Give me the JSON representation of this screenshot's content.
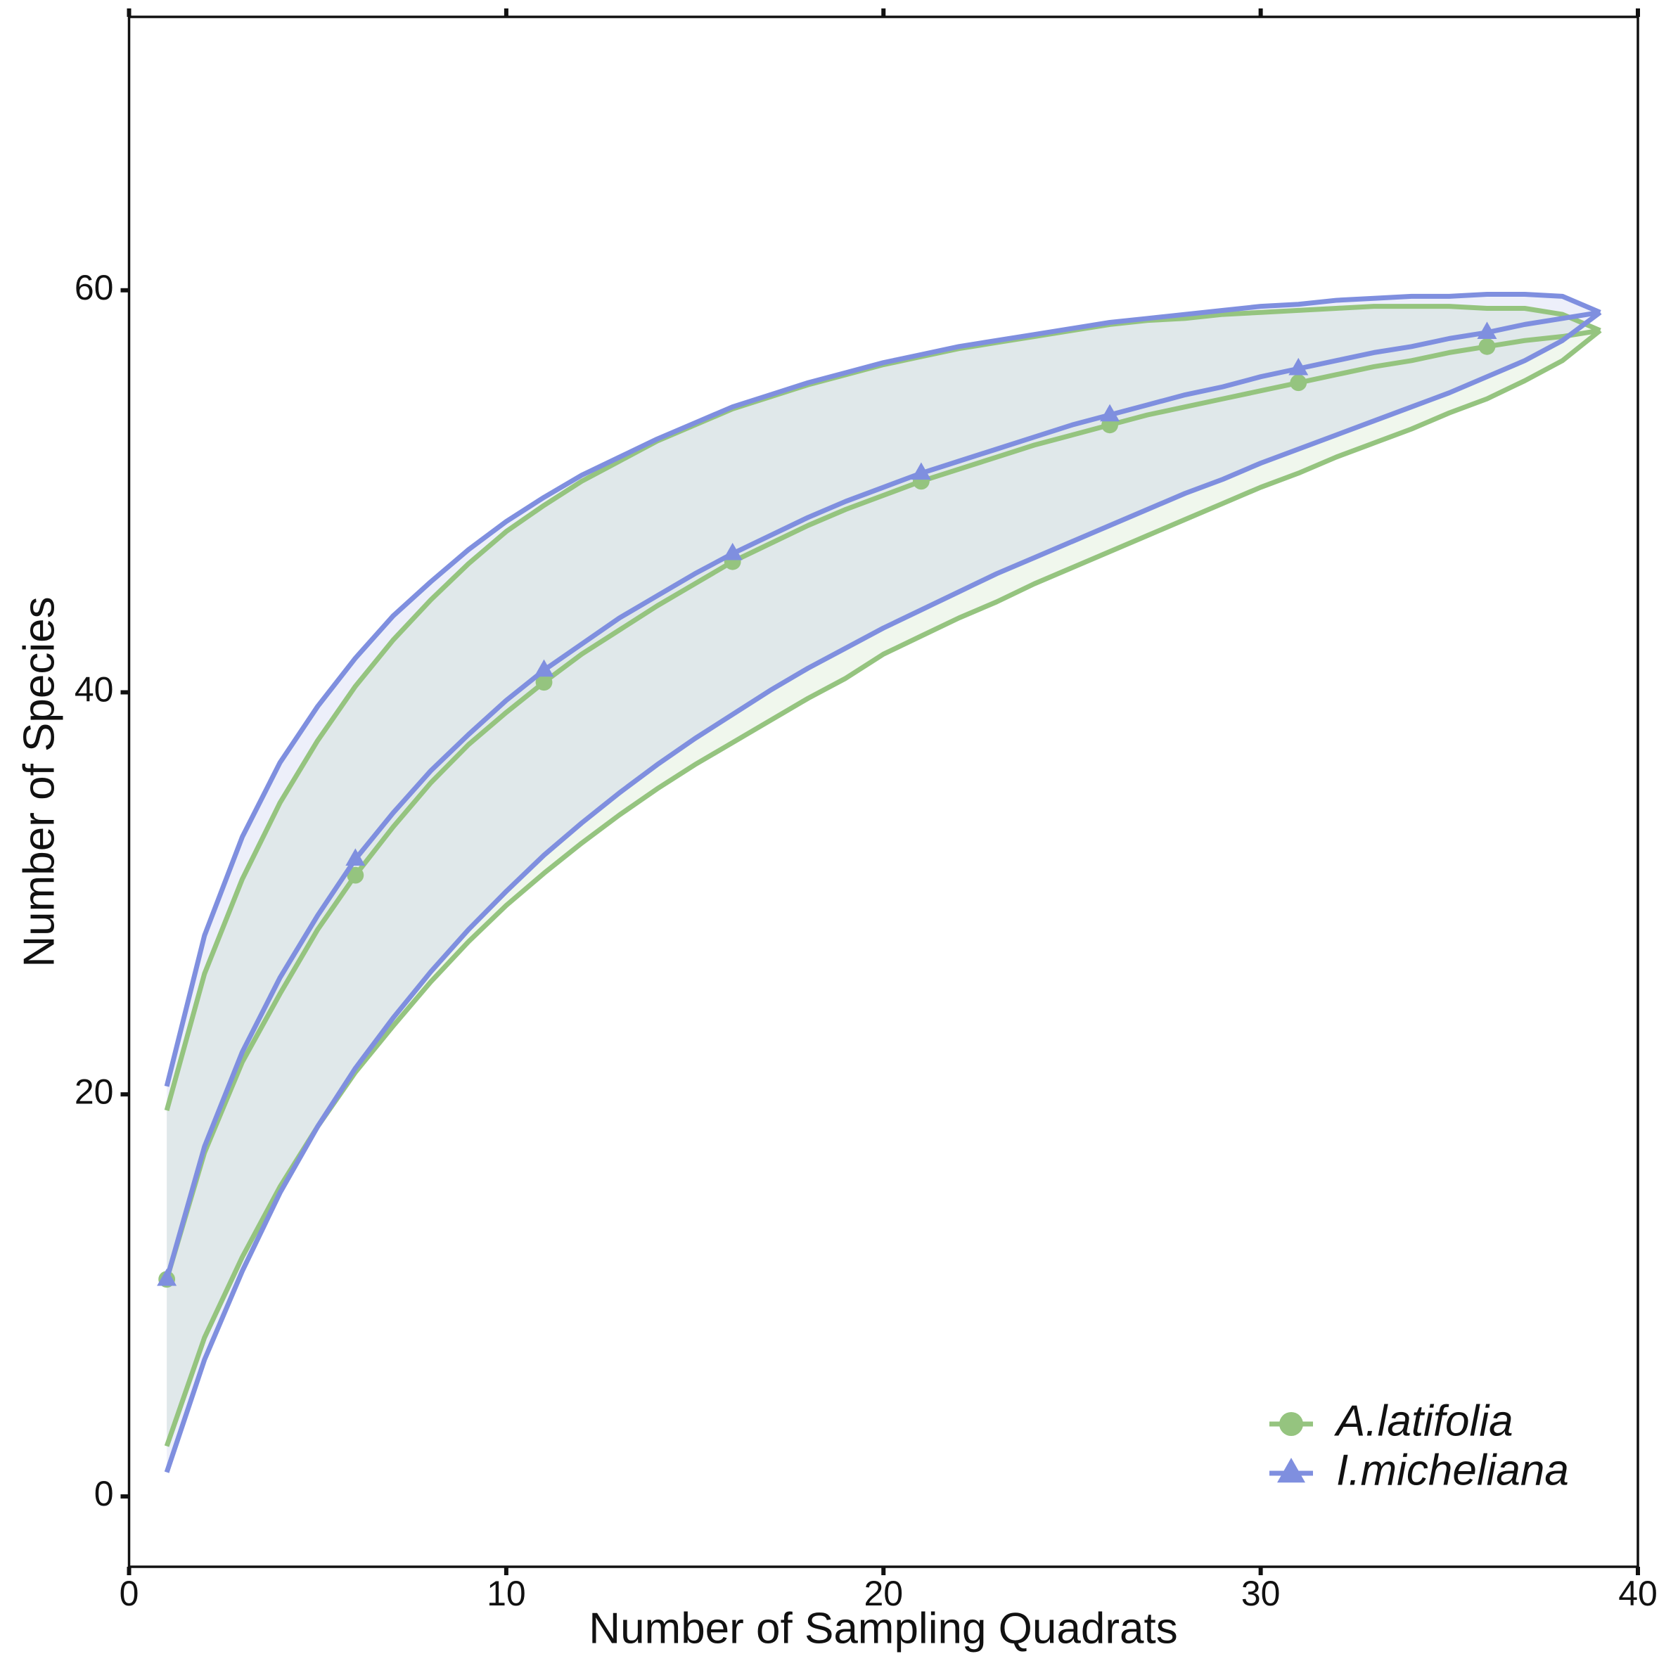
{
  "chart_data": {
    "type": "line",
    "x_label": "Number of Sampling Quadrats",
    "y_label": "Number of Species",
    "x": [
      1,
      2,
      3,
      4,
      5,
      6,
      7,
      8,
      9,
      10,
      11,
      12,
      13,
      14,
      15,
      16,
      17,
      18,
      19,
      20,
      21,
      22,
      23,
      24,
      25,
      26,
      27,
      28,
      29,
      30,
      31,
      32,
      33,
      34,
      35,
      36,
      37,
      38,
      39
    ],
    "marker_every": 5,
    "series": [
      {
        "name": "A.latifolia",
        "color": "#95c47f",
        "marker": "circle",
        "values": [
          10.8,
          17.1,
          21.6,
          25.0,
          28.2,
          30.9,
          33.3,
          35.5,
          37.4,
          39.0,
          40.5,
          41.9,
          43.1,
          44.3,
          45.4,
          46.5,
          47.4,
          48.3,
          49.1,
          49.8,
          50.5,
          51.1,
          51.7,
          52.3,
          52.8,
          53.3,
          53.8,
          54.2,
          54.6,
          55.0,
          55.4,
          55.8,
          56.2,
          56.5,
          56.9,
          57.2,
          57.5,
          57.7,
          58.0
        ],
        "upper": [
          19.2,
          26.0,
          30.7,
          34.5,
          37.6,
          40.3,
          42.6,
          44.6,
          46.4,
          48.0,
          49.3,
          50.5,
          51.5,
          52.5,
          53.3,
          54.1,
          54.7,
          55.3,
          55.8,
          56.3,
          56.7,
          57.1,
          57.4,
          57.7,
          58.0,
          58.3,
          58.5,
          58.6,
          58.8,
          58.9,
          59.0,
          59.1,
          59.2,
          59.2,
          59.2,
          59.1,
          59.1,
          58.8,
          58.0
        ],
        "lower": [
          2.5,
          7.9,
          11.9,
          15.4,
          18.4,
          21.1,
          23.4,
          25.6,
          27.6,
          29.4,
          31.0,
          32.5,
          33.9,
          35.2,
          36.4,
          37.5,
          38.6,
          39.7,
          40.7,
          41.9,
          42.8,
          43.7,
          44.5,
          45.4,
          46.2,
          47.0,
          47.8,
          48.6,
          49.4,
          50.2,
          50.9,
          51.7,
          52.4,
          53.1,
          53.9,
          54.6,
          55.5,
          56.5,
          58.0
        ]
      },
      {
        "name": "I.micheliana",
        "color": "#7f8fdf",
        "marker": "triangle",
        "values": [
          10.8,
          17.4,
          22.1,
          25.8,
          28.9,
          31.7,
          34.0,
          36.1,
          37.9,
          39.6,
          41.1,
          42.4,
          43.7,
          44.8,
          45.9,
          46.9,
          47.8,
          48.7,
          49.5,
          50.2,
          50.9,
          51.5,
          52.1,
          52.7,
          53.3,
          53.8,
          54.3,
          54.8,
          55.2,
          55.7,
          56.1,
          56.5,
          56.9,
          57.2,
          57.6,
          57.9,
          58.3,
          58.6,
          58.9
        ],
        "upper": [
          20.4,
          27.9,
          32.8,
          36.5,
          39.3,
          41.7,
          43.8,
          45.5,
          47.1,
          48.5,
          49.7,
          50.8,
          51.7,
          52.6,
          53.4,
          54.2,
          54.8,
          55.4,
          55.9,
          56.4,
          56.8,
          57.2,
          57.5,
          57.8,
          58.1,
          58.4,
          58.6,
          58.8,
          59.0,
          59.2,
          59.3,
          59.5,
          59.6,
          59.7,
          59.7,
          59.8,
          59.8,
          59.7,
          58.9
        ],
        "lower": [
          1.2,
          6.8,
          11.2,
          15.1,
          18.4,
          21.3,
          23.8,
          26.1,
          28.2,
          30.1,
          31.9,
          33.5,
          35.0,
          36.4,
          37.7,
          38.9,
          40.1,
          41.2,
          42.2,
          43.2,
          44.1,
          45.0,
          45.9,
          46.7,
          47.5,
          48.3,
          49.1,
          49.9,
          50.6,
          51.4,
          52.1,
          52.8,
          53.5,
          54.2,
          54.9,
          55.7,
          56.5,
          57.5,
          58.9
        ]
      }
    ],
    "xlim": [
      0,
      40
    ],
    "xticks": [
      0,
      10,
      20,
      30,
      40
    ],
    "ylim": [
      -3.5,
      73.6
    ],
    "yticks": [
      0,
      20,
      40,
      60
    ],
    "grid": false,
    "legend": "lower right"
  }
}
